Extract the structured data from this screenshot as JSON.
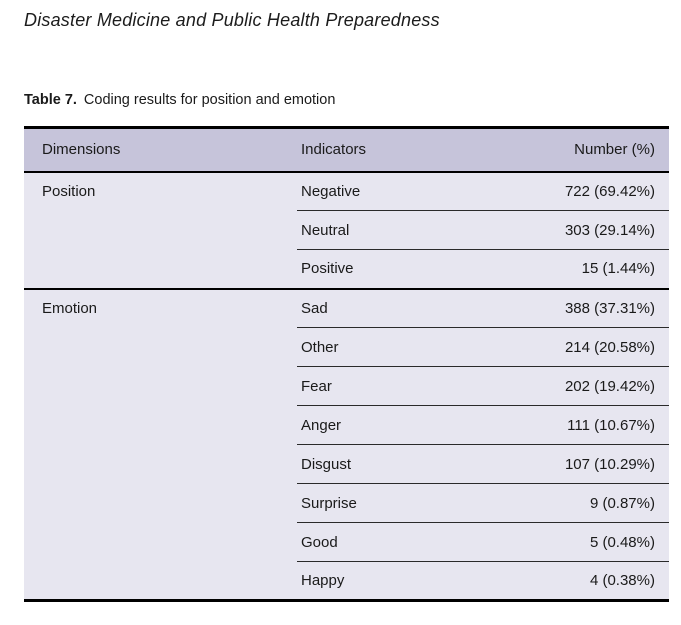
{
  "page": {
    "journal_title": "Disaster Medicine and Public Health Preparedness",
    "table_label": "Table 7.",
    "table_caption": "Coding results for position and emotion"
  },
  "table": {
    "columns": [
      "Dimensions",
      "Indicators",
      "Number (%)"
    ],
    "sections": [
      {
        "dimension": "Position",
        "rows": [
          {
            "indicator": "Negative",
            "number": "722 (69.42%)"
          },
          {
            "indicator": "Neutral",
            "number": "303 (29.14%)"
          },
          {
            "indicator": "Positive",
            "number": "15 (1.44%)"
          }
        ]
      },
      {
        "dimension": "Emotion",
        "rows": [
          {
            "indicator": "Sad",
            "number": "388 (37.31%)"
          },
          {
            "indicator": "Other",
            "number": "214 (20.58%)"
          },
          {
            "indicator": "Fear",
            "number": "202 (19.42%)"
          },
          {
            "indicator": "Anger",
            "number": "111 (10.67%)"
          },
          {
            "indicator": "Disgust",
            "number": "107 (10.29%)"
          },
          {
            "indicator": "Surprise",
            "number": "9 (0.87%)"
          },
          {
            "indicator": "Good",
            "number": "5 (0.48%)"
          },
          {
            "indicator": "Happy",
            "number": "4 (0.38%)"
          }
        ]
      }
    ],
    "colors": {
      "header_bg": "#c6c4da",
      "body_bg": "#e7e6f0",
      "rule_thick": "#000000",
      "rule_thin": "#2a2a2a"
    }
  }
}
